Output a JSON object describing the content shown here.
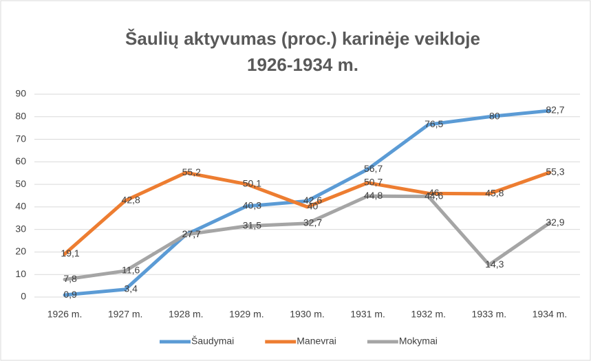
{
  "chart_data": {
    "type": "line",
    "title": [
      "Šaulių aktyvumas (proc.) karinėje veikloje",
      "1926-1934 m."
    ],
    "categories": [
      "1926 m.",
      "1927 m.",
      "1928 m.",
      "1929 m.",
      "1930 m.",
      "1931 m.",
      "1932 m.",
      "1933 m.",
      "1934 m."
    ],
    "series": [
      {
        "name": "Šaudymai",
        "color": "#5b9bd5",
        "values": [
          0.9,
          3.4,
          27.7,
          40.3,
          42.6,
          56.7,
          76.5,
          80,
          82.7
        ],
        "value_labels": [
          "0,9",
          "3,4",
          "27,7",
          "40,3",
          "42,6",
          "56,7",
          "76,5",
          "80",
          "82,7"
        ]
      },
      {
        "name": "Manevrai",
        "color": "#ed7d31",
        "values": [
          19.1,
          42.8,
          55.2,
          50.1,
          40,
          50.7,
          46,
          45.8,
          55.3
        ],
        "value_labels": [
          "19,1",
          "42,8",
          "55,2",
          "50,1",
          "40",
          "50,7",
          "46",
          "45,8",
          "55,3"
        ]
      },
      {
        "name": "Mokymai",
        "color": "#a5a5a5",
        "values": [
          7.8,
          11.6,
          27.7,
          31.5,
          32.7,
          44.8,
          44.6,
          14.3,
          32.9
        ],
        "value_labels": [
          "7,8",
          "11,6",
          "27,7",
          "31,5",
          "32,7",
          "44,8",
          "44,6",
          "14,3",
          "32,9"
        ]
      }
    ],
    "ylim": [
      0,
      90
    ],
    "yticks": [
      0,
      10,
      20,
      30,
      40,
      50,
      60,
      70,
      80,
      90
    ],
    "grid": true,
    "legend": "bottom"
  }
}
